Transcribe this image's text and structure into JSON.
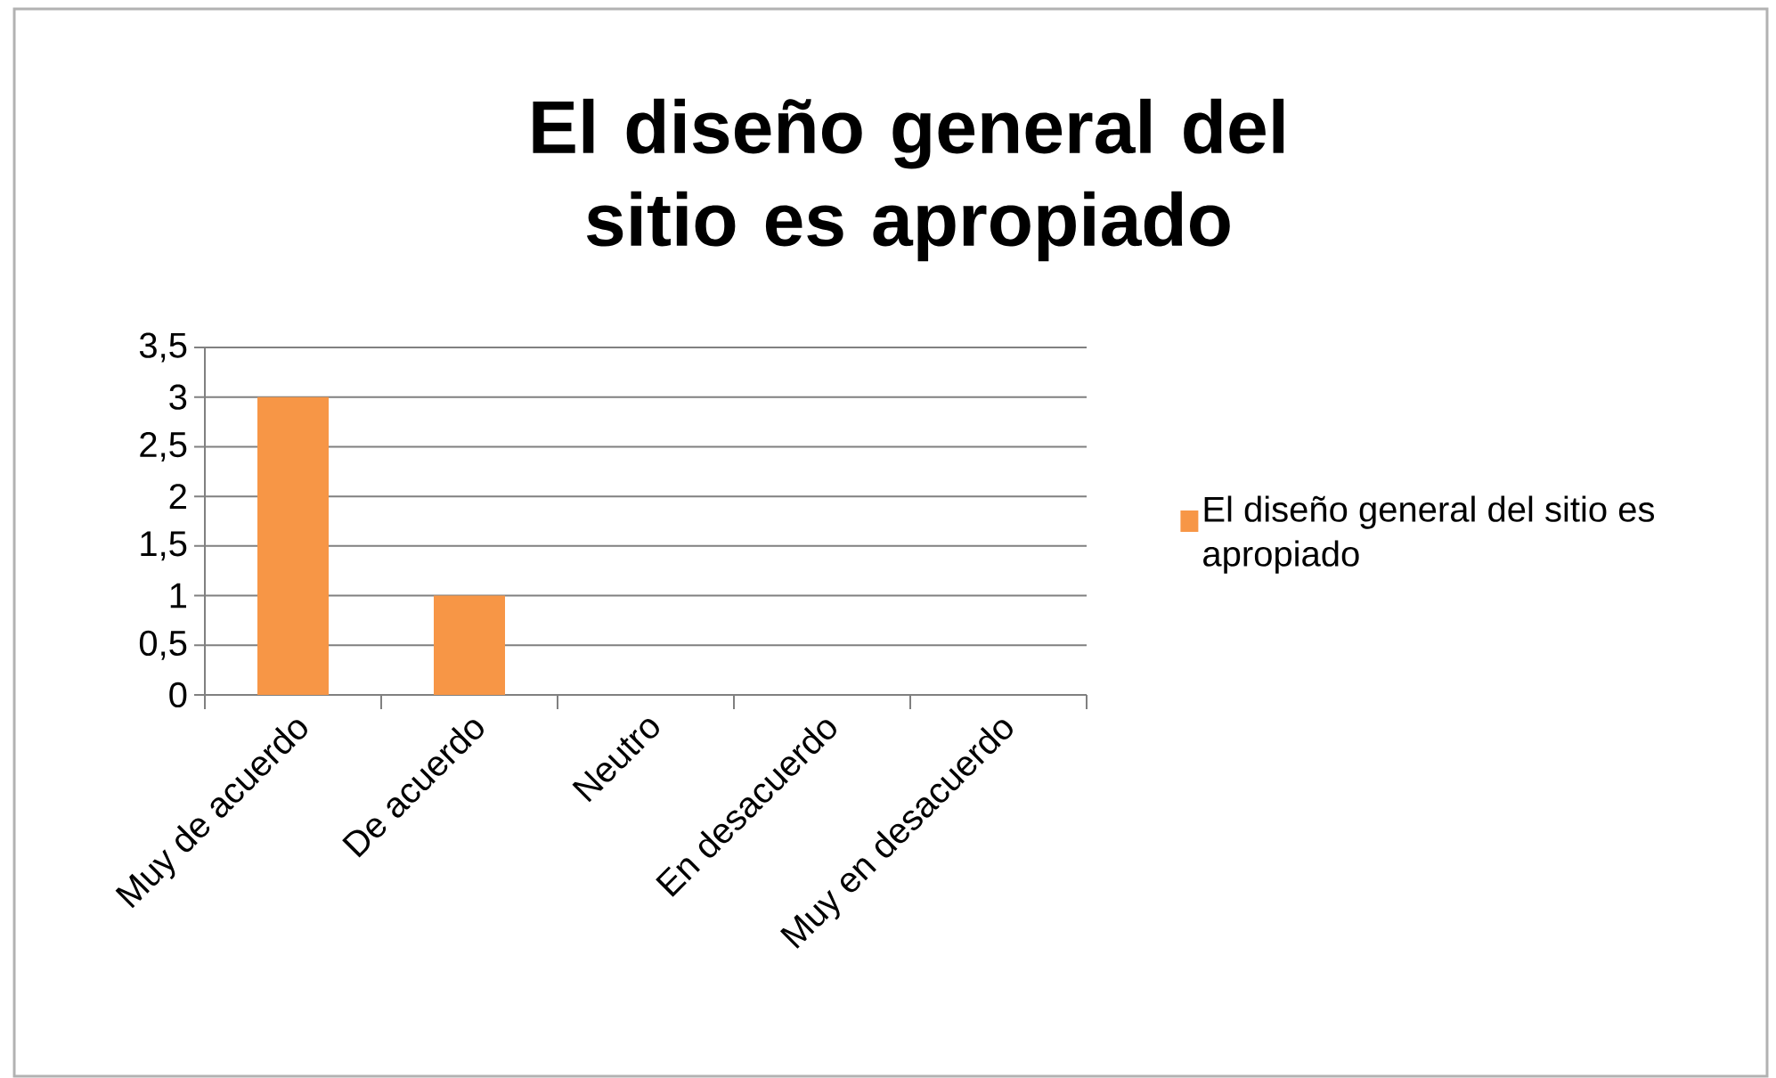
{
  "chart_data": {
    "type": "bar",
    "title": "El diseño general del sitio es apropiado",
    "categories": [
      "Muy de acuerdo",
      "De acuerdo",
      "Neutro",
      "En desacuerdo",
      "Muy en desacuerdo"
    ],
    "series": [
      {
        "name": "El diseño general del sitio es apropiado",
        "color": "#f79646",
        "values": [
          3,
          1,
          0,
          0,
          0
        ]
      }
    ],
    "ylim": [
      0,
      3.5
    ],
    "yticks": [
      0,
      {
        "value": 0.5,
        "label": "0,5"
      },
      1,
      {
        "value": 1.5,
        "label": "1,5"
      },
      2,
      {
        "value": 2.5,
        "label": "2,5"
      },
      3,
      {
        "value": 3.5,
        "label": "3,5"
      }
    ],
    "grid": "y",
    "legend": "right"
  }
}
